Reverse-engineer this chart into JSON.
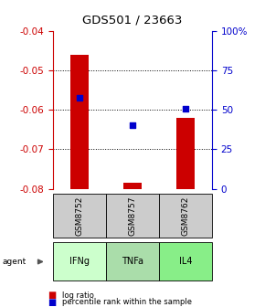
{
  "title": "GDS501 / 23663",
  "samples": [
    "GSM8752",
    "GSM8757",
    "GSM8762"
  ],
  "agents": [
    "IFNg",
    "TNFa",
    "IL4"
  ],
  "bar_bottoms": [
    -0.08,
    -0.08,
    -0.08
  ],
  "bar_tops": [
    -0.046,
    -0.0785,
    -0.062
  ],
  "bar_color": "#cc0000",
  "dot_values": [
    -0.057,
    -0.064,
    -0.0598
  ],
  "dot_color": "#0000cc",
  "ylim_left": [
    -0.08,
    -0.04
  ],
  "yticks_left": [
    -0.08,
    -0.07,
    -0.06,
    -0.05,
    -0.04
  ],
  "yticks_right": [
    0,
    25,
    50,
    75,
    100
  ],
  "ytick_labels_right": [
    "0",
    "25",
    "50",
    "75",
    "100%"
  ],
  "agent_colors": [
    "#ccffcc",
    "#aaddaa",
    "#88ee88"
  ],
  "sample_bg_color": "#cccccc",
  "left_tick_color": "#cc0000",
  "right_tick_color": "#0000cc",
  "bar_width": 0.35
}
